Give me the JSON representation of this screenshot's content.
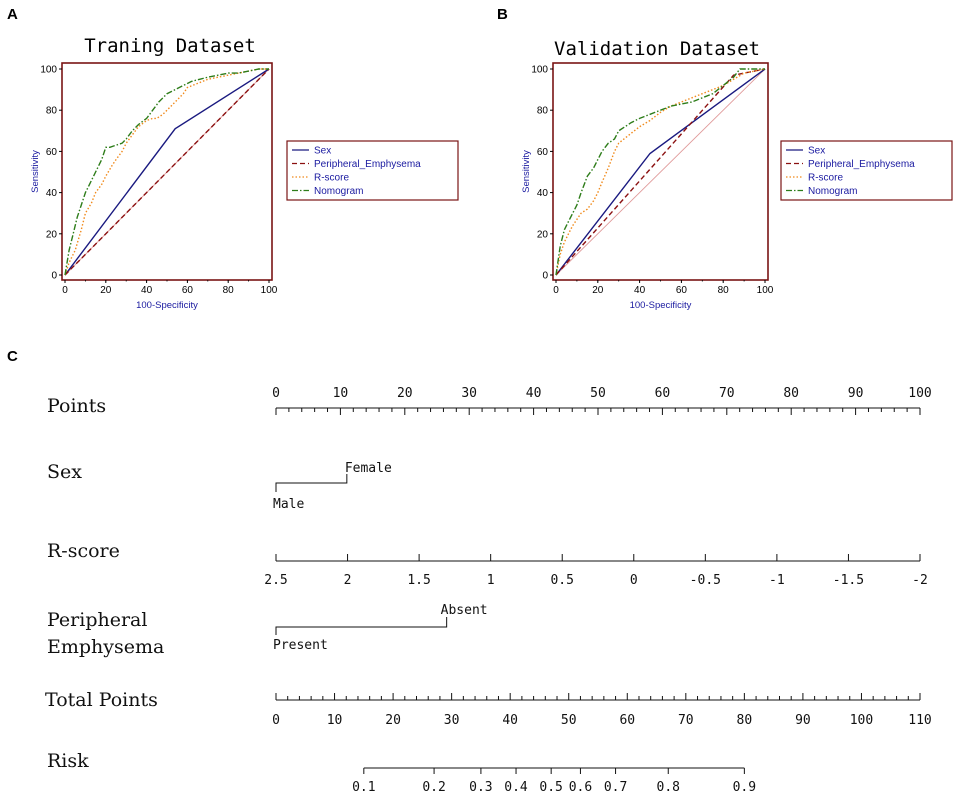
{
  "panels": {
    "a": "A",
    "b": "B",
    "c": "C"
  },
  "chart_data": [
    {
      "type": "line",
      "panel": "A",
      "title": "Traning Dataset",
      "xlabel": "100-Specificity",
      "ylabel": "Sensitivity",
      "xlim": [
        0,
        100
      ],
      "ylim": [
        0,
        100
      ],
      "xticks": [
        0,
        20,
        40,
        60,
        80,
        100
      ],
      "yticks": [
        0,
        20,
        40,
        60,
        80,
        100
      ],
      "legend": [
        "Sex",
        "Peripheral_Emphysema",
        "R-score",
        "Nomogram"
      ],
      "series": [
        {
          "name": "Sex",
          "color": "#1a1a80",
          "dash": "solid",
          "x": [
            0,
            54,
            100
          ],
          "y": [
            0,
            71,
            100
          ]
        },
        {
          "name": "Peripheral_Emphysema",
          "color": "#8b1010",
          "dash": "dash",
          "x": [
            0,
            100
          ],
          "y": [
            0,
            100
          ]
        },
        {
          "name": "R-score",
          "color": "#f08a1c",
          "dash": "dot",
          "x": [
            0,
            2,
            5,
            8,
            10,
            13,
            15,
            18,
            20,
            23,
            25,
            28,
            30,
            33,
            36,
            40,
            43,
            45,
            48,
            52,
            55,
            58,
            60,
            65,
            70,
            75,
            80,
            85,
            90,
            95,
            100
          ],
          "y": [
            0,
            6,
            12,
            22,
            30,
            35,
            40,
            44,
            48,
            53,
            56,
            60,
            64,
            68,
            72,
            75,
            76,
            76,
            78,
            82,
            85,
            88,
            91,
            93,
            95,
            96,
            97,
            98,
            99,
            100,
            100
          ]
        },
        {
          "name": "Nomogram",
          "color": "#2e7d1a",
          "dash": "dashdot",
          "x": [
            0,
            2,
            4,
            6,
            8,
            10,
            12,
            15,
            18,
            20,
            22,
            25,
            28,
            30,
            33,
            36,
            40,
            43,
            46,
            50,
            54,
            58,
            62,
            66,
            70,
            75,
            80,
            85,
            90,
            95,
            100
          ],
          "y": [
            0,
            12,
            20,
            28,
            34,
            40,
            44,
            50,
            56,
            62,
            62,
            63,
            64,
            66,
            70,
            73,
            76,
            80,
            84,
            88,
            90,
            92,
            94,
            95,
            96,
            97,
            98,
            98,
            99,
            100,
            100
          ]
        },
        {
          "name": "diagonal",
          "color": "#e09a9a",
          "dash": "solid",
          "x": [
            0,
            100
          ],
          "y": [
            0,
            100
          ]
        }
      ]
    },
    {
      "type": "line",
      "panel": "B",
      "title": "Validation Dataset",
      "xlabel": "100-Specificity",
      "ylabel": "Sensitivity",
      "xlim": [
        0,
        100
      ],
      "ylim": [
        0,
        100
      ],
      "xticks": [
        0,
        20,
        40,
        60,
        80,
        100
      ],
      "yticks": [
        0,
        20,
        40,
        60,
        80,
        100
      ],
      "legend": [
        "Sex",
        "Peripheral_Emphysema",
        "R-score",
        "Nomogram"
      ],
      "series": [
        {
          "name": "Sex",
          "color": "#1a1a80",
          "dash": "solid",
          "x": [
            0,
            45,
            100
          ],
          "y": [
            0,
            59,
            100
          ]
        },
        {
          "name": "Peripheral_Emphysema",
          "color": "#8b1010",
          "dash": "dash",
          "x": [
            0,
            85,
            100
          ],
          "y": [
            0,
            97,
            100
          ]
        },
        {
          "name": "R-score",
          "color": "#f08a1c",
          "dash": "dot",
          "x": [
            0,
            2,
            4,
            6,
            8,
            10,
            12,
            15,
            18,
            20,
            22,
            25,
            28,
            30,
            35,
            40,
            45,
            50,
            55,
            60,
            65,
            70,
            75,
            80,
            85,
            90,
            95,
            100
          ],
          "y": [
            0,
            10,
            16,
            20,
            24,
            27,
            30,
            32,
            36,
            40,
            45,
            52,
            60,
            64,
            68,
            72,
            75,
            79,
            82,
            84,
            86,
            88,
            90,
            92,
            95,
            98,
            99,
            100
          ]
        },
        {
          "name": "Nomogram",
          "color": "#2e7d1a",
          "dash": "dashdot",
          "x": [
            0,
            2,
            4,
            6,
            8,
            10,
            12,
            15,
            18,
            20,
            22,
            25,
            28,
            30,
            33,
            36,
            40,
            45,
            50,
            55,
            60,
            65,
            70,
            75,
            80,
            85,
            88,
            90,
            95,
            100
          ],
          "y": [
            0,
            14,
            22,
            26,
            30,
            34,
            40,
            48,
            52,
            56,
            60,
            64,
            66,
            70,
            72,
            74,
            76,
            78,
            80,
            82,
            83,
            84,
            86,
            88,
            92,
            96,
            100,
            100,
            100,
            100
          ]
        },
        {
          "name": "diagonal",
          "color": "#e09a9a",
          "dash": "solid",
          "x": [
            0,
            100
          ],
          "y": [
            0,
            100
          ]
        }
      ]
    }
  ],
  "nomogram": {
    "rows": {
      "points": "Points",
      "sex": "Sex",
      "rscore": "R-score",
      "pe_line1": "Peripheral",
      "pe_line2": "Emphysema",
      "total": "Total Points",
      "risk": "Risk"
    },
    "points_axis": {
      "min": 0,
      "max": 100,
      "labels": [
        "0",
        "10",
        "20",
        "30",
        "40",
        "50",
        "60",
        "70",
        "80",
        "90",
        "100"
      ]
    },
    "sex": {
      "low": "Male",
      "high": "Female",
      "high_points": 11
    },
    "rscore_axis": {
      "labels": [
        "2.5",
        "2",
        "1.5",
        "1",
        "0.5",
        "0",
        "-0.5",
        "-1",
        "-1.5",
        "-2"
      ],
      "values": [
        2.5,
        2,
        1.5,
        1,
        0.5,
        0,
        -0.5,
        -1,
        -1.5,
        -2
      ]
    },
    "pe": {
      "low": "Present",
      "high": "Absent",
      "high_points": 26.5
    },
    "total_axis": {
      "min": 0,
      "max": 110,
      "labels": [
        "0",
        "10",
        "20",
        "30",
        "40",
        "50",
        "60",
        "70",
        "80",
        "90",
        "100",
        "110"
      ]
    },
    "risk_axis": {
      "labels": [
        "0.1",
        "0.2",
        "0.3",
        "0.4",
        "0.5",
        "0.6",
        "0.7",
        "0.8",
        "0.9"
      ],
      "values": [
        0.1,
        0.2,
        0.3,
        0.4,
        0.5,
        0.6,
        0.7,
        0.8,
        0.9
      ],
      "total_points": [
        15,
        27,
        35,
        41,
        47,
        52,
        58,
        67,
        80
      ]
    }
  }
}
